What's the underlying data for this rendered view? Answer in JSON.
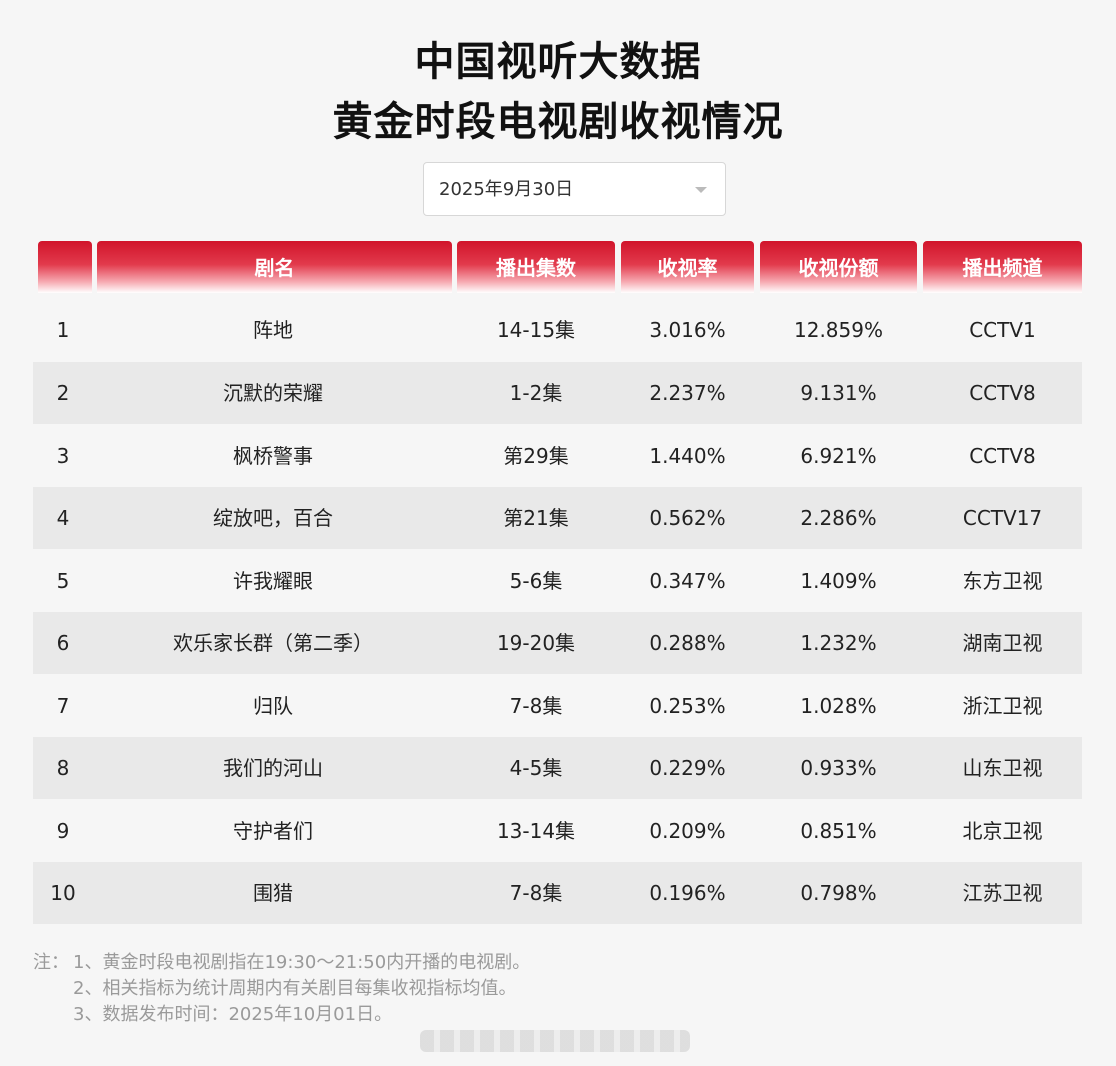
{
  "title": {
    "line1": "中国视听大数据",
    "line2": "黄金时段电视剧收视情况"
  },
  "date_select": {
    "value": "2025年9月30日",
    "icon": "chevron-down-icon"
  },
  "table": {
    "header_color": "#d1142b",
    "columns": [
      "",
      "剧名",
      "播出集数",
      "收视率",
      "收视份额",
      "播出频道"
    ],
    "rows": [
      {
        "rank": "1",
        "name": "阵地",
        "episodes": "14-15集",
        "rating": "3.016%",
        "share": "12.859%",
        "channel": "CCTV1"
      },
      {
        "rank": "2",
        "name": "沉默的荣耀",
        "episodes": "1-2集",
        "rating": "2.237%",
        "share": "9.131%",
        "channel": "CCTV8"
      },
      {
        "rank": "3",
        "name": "枫桥警事",
        "episodes": "第29集",
        "rating": "1.440%",
        "share": "6.921%",
        "channel": "CCTV8"
      },
      {
        "rank": "4",
        "name": "绽放吧，百合",
        "episodes": "第21集",
        "rating": "0.562%",
        "share": "2.286%",
        "channel": "CCTV17"
      },
      {
        "rank": "5",
        "name": "许我耀眼",
        "episodes": "5-6集",
        "rating": "0.347%",
        "share": "1.409%",
        "channel": "东方卫视"
      },
      {
        "rank": "6",
        "name": "欢乐家长群（第二季）",
        "episodes": "19-20集",
        "rating": "0.288%",
        "share": "1.232%",
        "channel": "湖南卫视"
      },
      {
        "rank": "7",
        "name": "归队",
        "episodes": "7-8集",
        "rating": "0.253%",
        "share": "1.028%",
        "channel": "浙江卫视"
      },
      {
        "rank": "8",
        "name": "我们的河山",
        "episodes": "4-5集",
        "rating": "0.229%",
        "share": "0.933%",
        "channel": "山东卫视"
      },
      {
        "rank": "9",
        "name": "守护者们",
        "episodes": "13-14集",
        "rating": "0.209%",
        "share": "0.851%",
        "channel": "北京卫视"
      },
      {
        "rank": "10",
        "name": "围猎",
        "episodes": "7-8集",
        "rating": "0.196%",
        "share": "0.798%",
        "channel": "江苏卫视"
      }
    ]
  },
  "notes": {
    "prefix": "注：",
    "items": [
      "1、黄金时段电视剧指在19:30～21:50内开播的电视剧。",
      "2、相关指标为统计周期内有关剧目每集收视指标均值。",
      "3、数据发布时间：2025年10月01日。"
    ]
  }
}
